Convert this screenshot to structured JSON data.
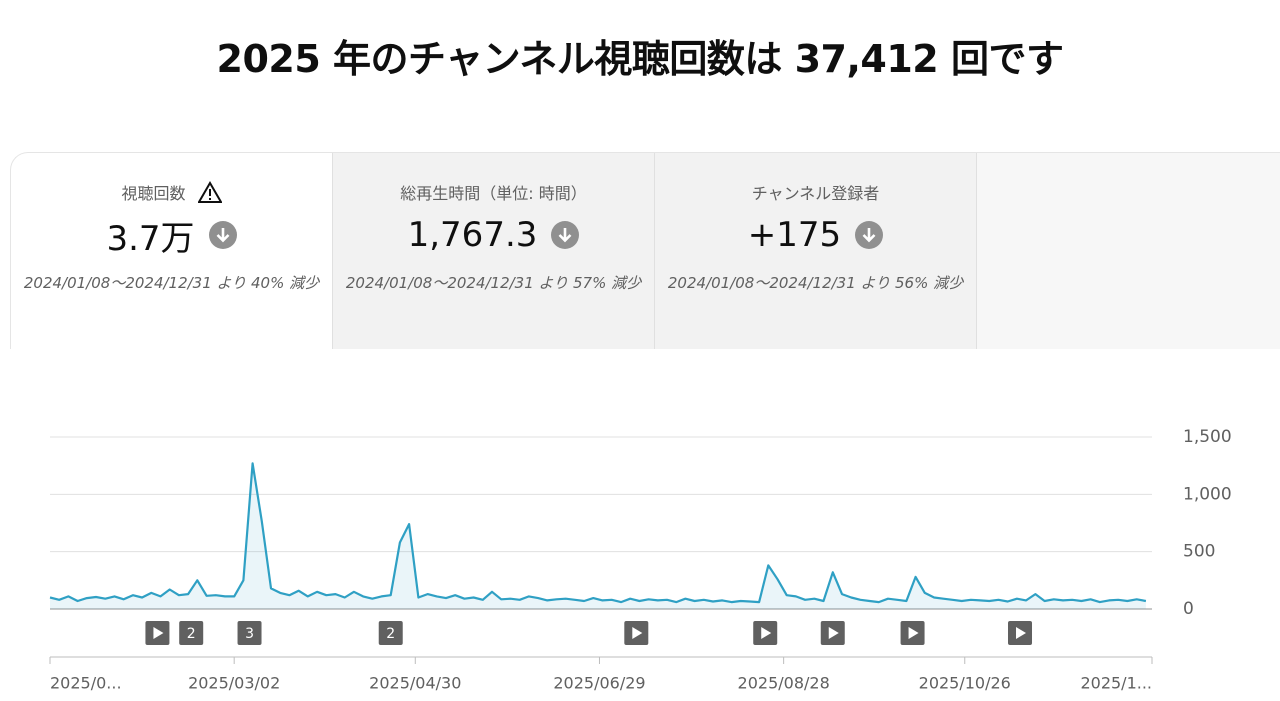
{
  "header": {
    "title": "2025 年のチャンネル視聴回数は 37,412 回です"
  },
  "cards": [
    {
      "label": "視聴回数",
      "value": "3.7万",
      "comparison": "2024/01/08～2024/12/31 より 40% 減少"
    },
    {
      "label": "総再生時間（単位: 時間）",
      "value": "1,767.3",
      "comparison": "2024/01/08～2024/12/31 より 57% 減少"
    },
    {
      "label": "チャンネル登録者",
      "value": "+175",
      "comparison": "2024/01/08～2024/12/31 より 56% 減少"
    }
  ],
  "chart_data": {
    "type": "line",
    "color": "#2fa0c4",
    "x": [
      "2025/01/01",
      "2025/01/04",
      "2025/01/07",
      "2025/01/10",
      "2025/01/13",
      "2025/01/16",
      "2025/01/19",
      "2025/01/22",
      "2025/01/25",
      "2025/01/28",
      "2025/01/31",
      "2025/02/03",
      "2025/02/06",
      "2025/02/09",
      "2025/02/12",
      "2025/02/15",
      "2025/02/18",
      "2025/02/21",
      "2025/02/24",
      "2025/02/27",
      "2025/03/02",
      "2025/03/05",
      "2025/03/08",
      "2025/03/11",
      "2025/03/14",
      "2025/03/17",
      "2025/03/20",
      "2025/03/23",
      "2025/03/26",
      "2025/03/29",
      "2025/04/01",
      "2025/04/04",
      "2025/04/07",
      "2025/04/10",
      "2025/04/13",
      "2025/04/16",
      "2025/04/19",
      "2025/04/22",
      "2025/04/25",
      "2025/04/28",
      "2025/05/01",
      "2025/05/04",
      "2025/05/07",
      "2025/05/10",
      "2025/05/13",
      "2025/05/16",
      "2025/05/19",
      "2025/05/22",
      "2025/05/25",
      "2025/05/28",
      "2025/05/31",
      "2025/06/03",
      "2025/06/06",
      "2025/06/09",
      "2025/06/12",
      "2025/06/15",
      "2025/06/18",
      "2025/06/21",
      "2025/06/24",
      "2025/06/27",
      "2025/06/30",
      "2025/07/03",
      "2025/07/06",
      "2025/07/09",
      "2025/07/12",
      "2025/07/15",
      "2025/07/18",
      "2025/07/21",
      "2025/07/24",
      "2025/07/27",
      "2025/07/30",
      "2025/08/02",
      "2025/08/05",
      "2025/08/08",
      "2025/08/11",
      "2025/08/14",
      "2025/08/17",
      "2025/08/20",
      "2025/08/23",
      "2025/08/26",
      "2025/08/29",
      "2025/09/01",
      "2025/09/04",
      "2025/09/07",
      "2025/09/10",
      "2025/09/13",
      "2025/09/16",
      "2025/09/19",
      "2025/09/22",
      "2025/09/25",
      "2025/09/28",
      "2025/10/01",
      "2025/10/04",
      "2025/10/07",
      "2025/10/10",
      "2025/10/13",
      "2025/10/16",
      "2025/10/19",
      "2025/10/22",
      "2025/10/25",
      "2025/10/28",
      "2025/10/31",
      "2025/11/03",
      "2025/11/06",
      "2025/11/09",
      "2025/11/12",
      "2025/11/15",
      "2025/11/18",
      "2025/11/21",
      "2025/11/24",
      "2025/11/27",
      "2025/11/30",
      "2025/12/03",
      "2025/12/06",
      "2025/12/09",
      "2025/12/12",
      "2025/12/15",
      "2025/12/18",
      "2025/12/21",
      "2025/12/24"
    ],
    "values": [
      100,
      80,
      110,
      70,
      95,
      105,
      90,
      110,
      85,
      120,
      100,
      140,
      110,
      170,
      120,
      130,
      250,
      115,
      120,
      110,
      110,
      250,
      1270,
      765,
      180,
      140,
      120,
      160,
      110,
      150,
      120,
      130,
      100,
      150,
      110,
      90,
      110,
      120,
      580,
      740,
      100,
      130,
      110,
      95,
      120,
      90,
      100,
      80,
      150,
      85,
      90,
      80,
      110,
      95,
      75,
      85,
      90,
      80,
      70,
      95,
      75,
      80,
      60,
      90,
      70,
      85,
      75,
      80,
      60,
      90,
      70,
      80,
      65,
      75,
      60,
      70,
      65,
      60,
      380,
      260,
      120,
      110,
      80,
      90,
      70,
      320,
      130,
      100,
      80,
      70,
      60,
      90,
      80,
      70,
      280,
      140,
      100,
      90,
      80,
      70,
      80,
      75,
      70,
      80,
      65,
      90,
      75,
      130,
      70,
      85,
      75,
      80,
      70,
      85,
      60,
      75,
      80,
      70,
      85,
      70
    ],
    "xlim": [
      "2025/01/01",
      "2025/12/26"
    ],
    "xticks": [
      {
        "value": "2025/01/01",
        "label": "2025/0..."
      },
      "2025/03/02",
      "2025/04/30",
      "2025/06/29",
      "2025/08/28",
      "2025/10/26",
      {
        "value": "2025/12/26",
        "label": "2025/1..."
      }
    ],
    "ylim": [
      0,
      1500
    ],
    "yticks": [
      0,
      500,
      {
        "value": 1000,
        "label": "1,000"
      },
      {
        "value": 1500,
        "label": "1,500"
      }
    ],
    "grid": true,
    "markers": [
      {
        "x": "2025/02/05"
      },
      {
        "x": "2025/02/16",
        "label": "2"
      },
      {
        "x": "2025/03/07",
        "label": "3"
      },
      {
        "x": "2025/04/22",
        "label": "2"
      },
      {
        "x": "2025/07/11"
      },
      {
        "x": "2025/08/22"
      },
      {
        "x": "2025/09/13"
      },
      {
        "x": "2025/10/09"
      },
      {
        "x": "2025/11/13"
      }
    ]
  }
}
